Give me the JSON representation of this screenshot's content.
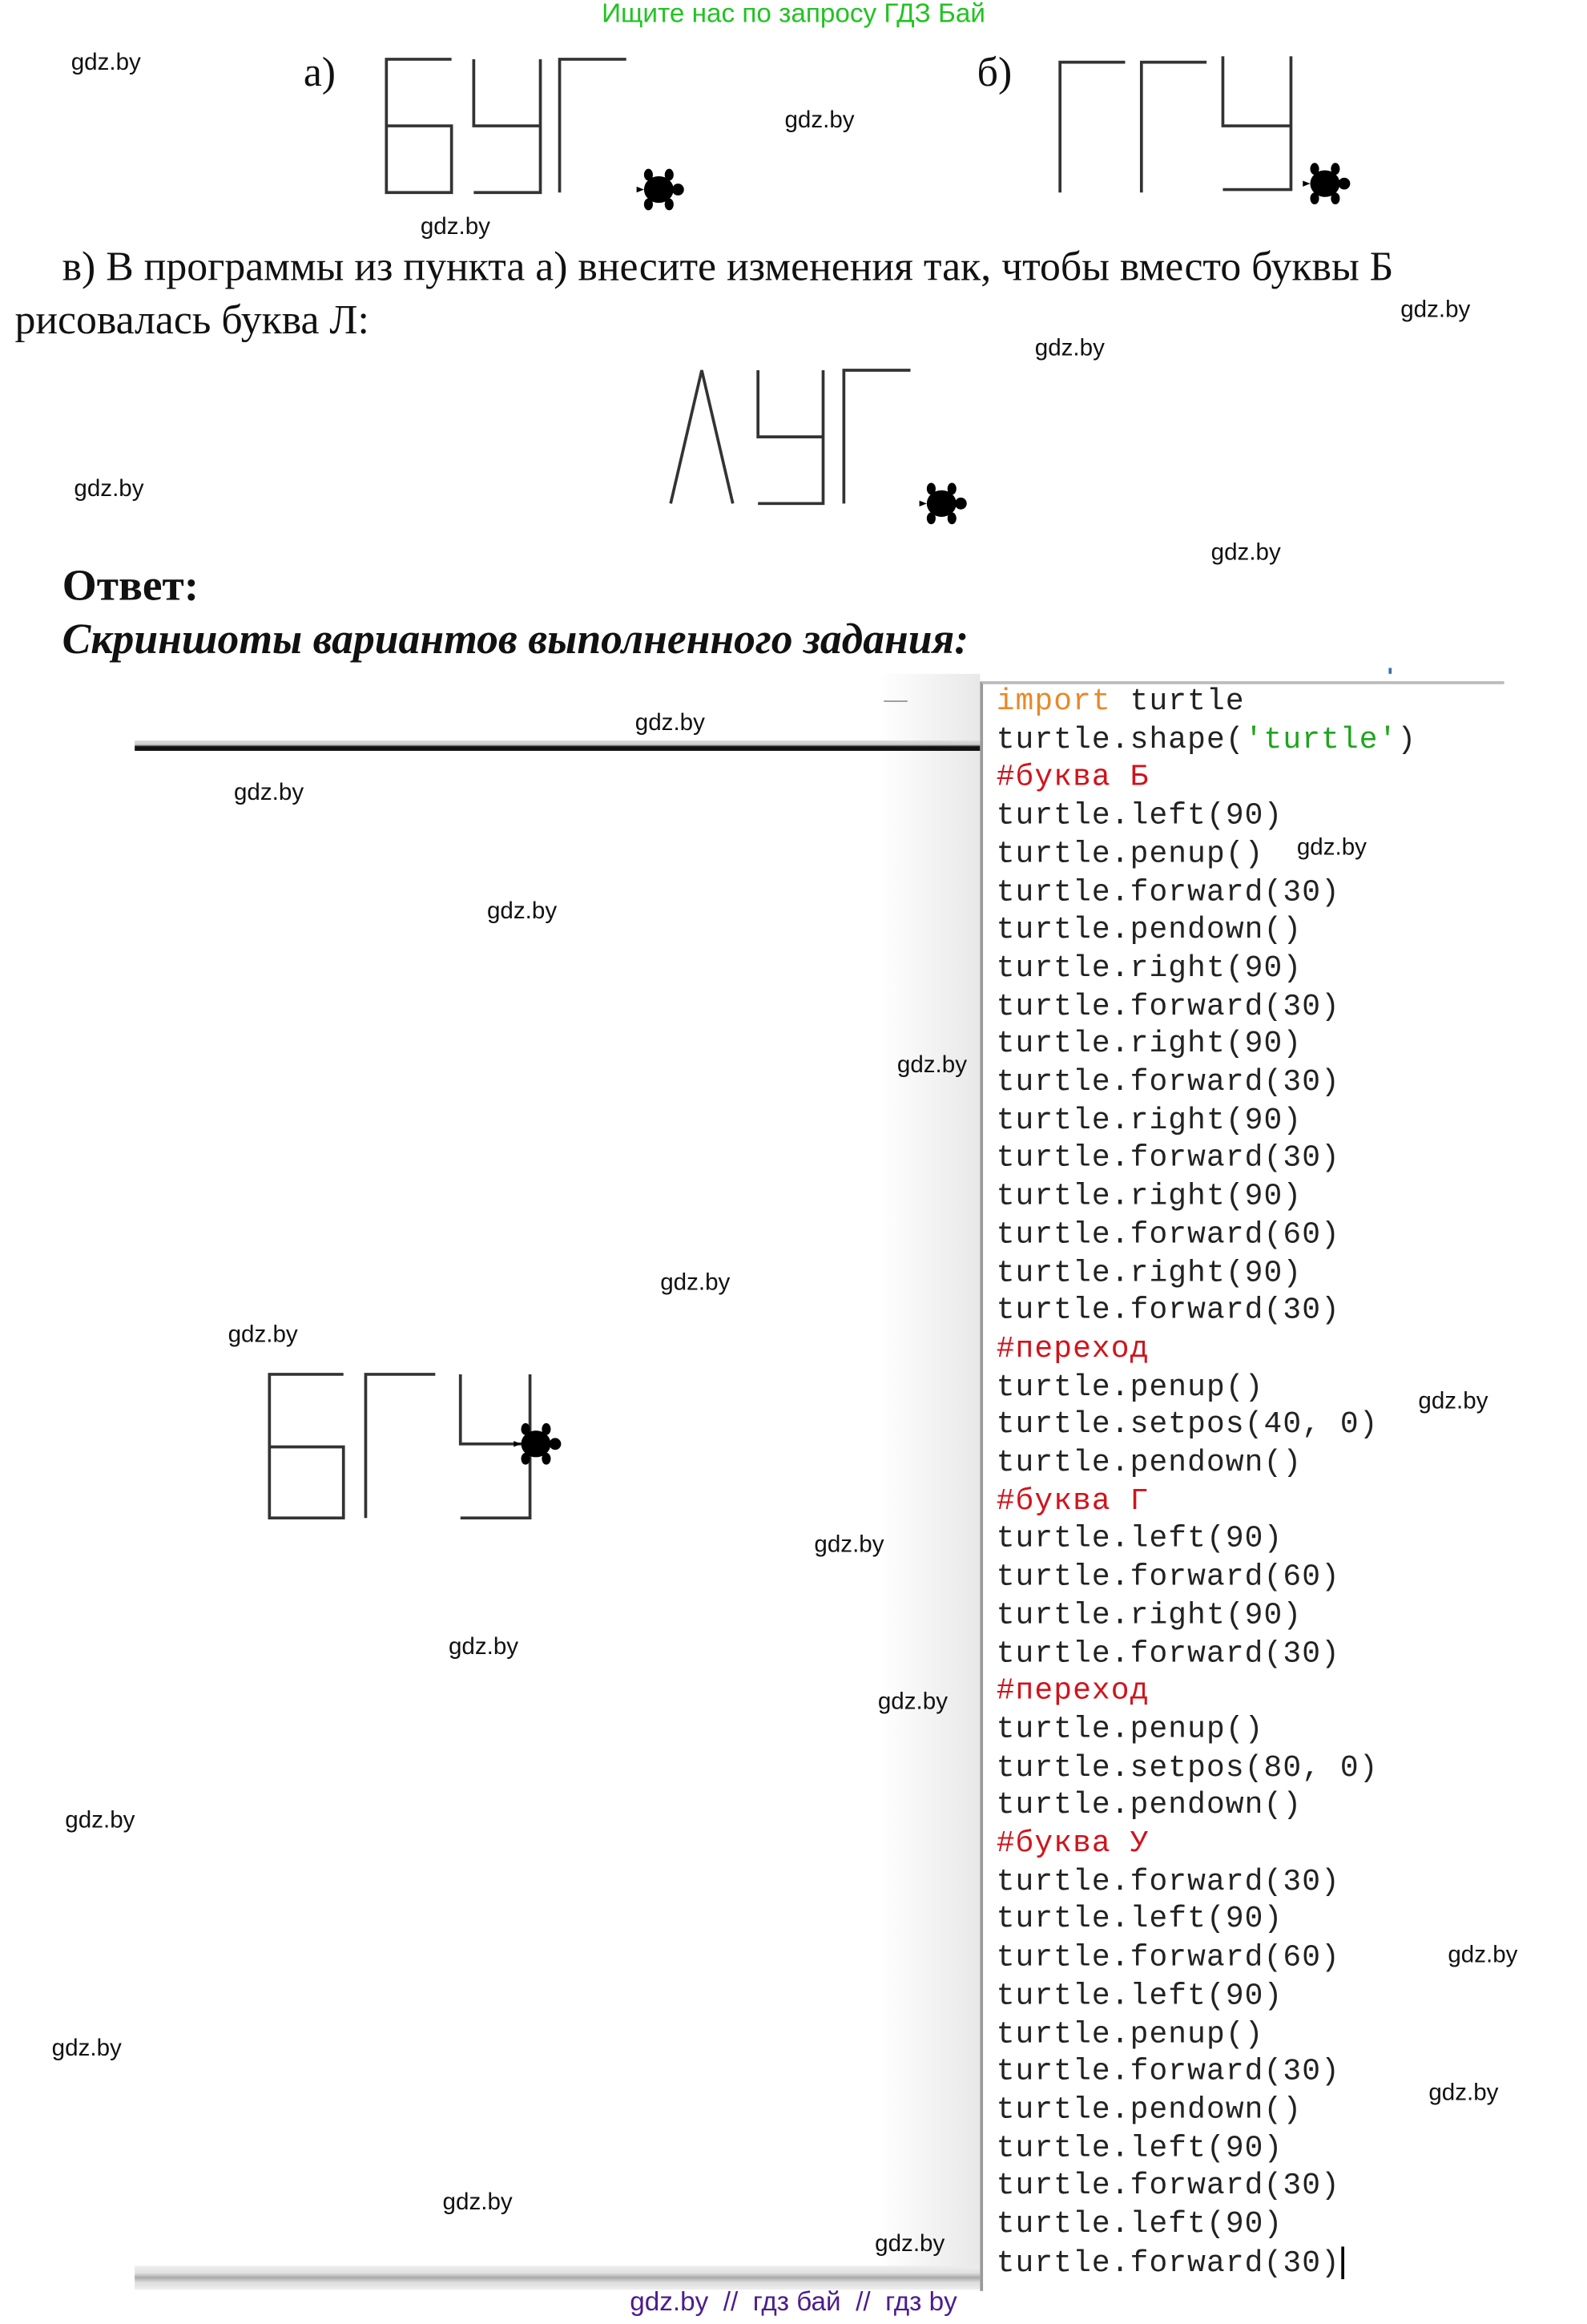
{
  "header": {
    "text": "Ищите нас по запросу ГДЗ Бай"
  },
  "watermark": "gdz.by",
  "task": {
    "label_a": "а)",
    "label_b": "б)",
    "question_line1": "в) В программы из пункта а) внесите изменения так, чтобы вместо буквы Б",
    "question_line2": "рисовалась буква Л:"
  },
  "answer": {
    "title": "Ответ:",
    "subtitle": "Скриншоты вариантов выполненного задания:"
  },
  "code": {
    "lines": [
      [
        {
          "t": "import",
          "c": "kw"
        },
        {
          "t": " turtle"
        }
      ],
      [
        {
          "t": "turtle.shape("
        },
        {
          "t": "'turtle'",
          "c": "str"
        },
        {
          "t": ")"
        }
      ],
      [
        {
          "t": "#буква Б",
          "c": "cm"
        }
      ],
      [
        {
          "t": "turtle.left(90)"
        }
      ],
      [
        {
          "t": "turtle.penup()"
        }
      ],
      [
        {
          "t": "turtle.forward(30)"
        }
      ],
      [
        {
          "t": "turtle.pendown()"
        }
      ],
      [
        {
          "t": "turtle.right(90)"
        }
      ],
      [
        {
          "t": "turtle.forward(30)"
        }
      ],
      [
        {
          "t": "turtle.right(90)"
        }
      ],
      [
        {
          "t": "turtle.forward(30)"
        }
      ],
      [
        {
          "t": "turtle.right(90)"
        }
      ],
      [
        {
          "t": "turtle.forward(30)"
        }
      ],
      [
        {
          "t": "turtle.right(90)"
        }
      ],
      [
        {
          "t": "turtle.forward(60)"
        }
      ],
      [
        {
          "t": "turtle.right(90)"
        }
      ],
      [
        {
          "t": "turtle.forward(30)"
        }
      ],
      [
        {
          "t": "#переход",
          "c": "cm"
        }
      ],
      [
        {
          "t": "turtle.penup()"
        }
      ],
      [
        {
          "t": "turtle.setpos(40, 0)"
        }
      ],
      [
        {
          "t": "turtle.pendown()"
        }
      ],
      [
        {
          "t": "#буква Г",
          "c": "cm"
        }
      ],
      [
        {
          "t": "turtle.left(90)"
        }
      ],
      [
        {
          "t": "turtle.forward(60)"
        }
      ],
      [
        {
          "t": "turtle.right(90)"
        }
      ],
      [
        {
          "t": "turtle.forward(30)"
        }
      ],
      [
        {
          "t": "#переход",
          "c": "cm"
        }
      ],
      [
        {
          "t": "turtle.penup()"
        }
      ],
      [
        {
          "t": "turtle.setpos(80, 0)"
        }
      ],
      [
        {
          "t": "turtle.pendown()"
        }
      ],
      [
        {
          "t": "#буква У",
          "c": "cm"
        }
      ],
      [
        {
          "t": "turtle.forward(30)"
        }
      ],
      [
        {
          "t": "turtle.left(90)"
        }
      ],
      [
        {
          "t": "turtle.forward(60)"
        }
      ],
      [
        {
          "t": "turtle.left(90)"
        }
      ],
      [
        {
          "t": "turtle.penup()"
        }
      ],
      [
        {
          "t": "turtle.forward(30)"
        }
      ],
      [
        {
          "t": "turtle.pendown()"
        }
      ],
      [
        {
          "t": "turtle.left(90)"
        }
      ],
      [
        {
          "t": "turtle.forward(30)"
        }
      ],
      [
        {
          "t": "turtle.left(90)"
        }
      ],
      [
        {
          "t": "turtle.forward(30)"
        }
      ]
    ]
  },
  "footer": {
    "text": "gdz.by  //  гдз бай  //  гдз by"
  },
  "colors": {
    "keyword": "#e8892a",
    "string": "#1ea51e",
    "comment": "#d0141c",
    "header": "#22c322",
    "footer": "#4b1d8c"
  },
  "icons": [
    "turtle-icon"
  ]
}
